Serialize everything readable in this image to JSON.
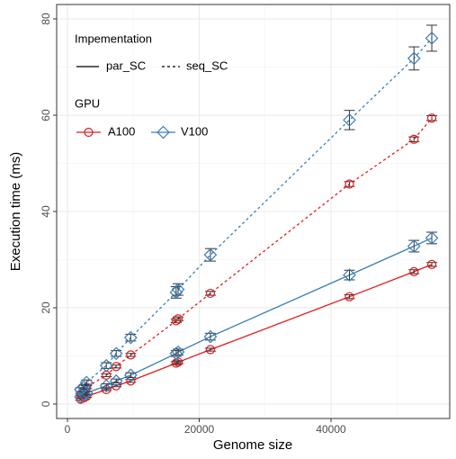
{
  "chart_data": {
    "type": "line",
    "x_label": "Genome size",
    "y_label": "Execution time (ms)",
    "x": [
      2000,
      2500,
      2900,
      5900,
      7400,
      9600,
      16500,
      16800,
      21700,
      42800,
      52600,
      55300
    ],
    "xlim": [
      -1640,
      58020
    ],
    "ylim": [
      -3,
      83
    ],
    "xticks": [
      0,
      20000,
      40000
    ],
    "yticks": [
      0,
      20,
      40,
      60,
      80
    ],
    "x_minor_ticks": [
      10000,
      30000,
      50000
    ],
    "y_minor_ticks": [
      10,
      30,
      50,
      70
    ],
    "grid": true,
    "series": [
      {
        "color": "#e41a1c",
        "marker": "circle",
        "dashed": false,
        "values": [
          1,
          1.3,
          1.6,
          3,
          3.8,
          4.8,
          8.5,
          8.7,
          11.3,
          22.3,
          27.5,
          29
        ],
        "errors": [
          0.2,
          0.2,
          0.2,
          0.2,
          0.2,
          0.3,
          0.3,
          0.3,
          0.3,
          0.4,
          0.4,
          0.4
        ]
      },
      {
        "color": "#e41a1c",
        "marker": "circle",
        "dashed": true,
        "values": [
          2,
          2.5,
          3.5,
          6,
          7.8,
          10.2,
          17.3,
          17.7,
          23,
          45.7,
          55,
          59.4
        ],
        "errors": [
          0.2,
          0.2,
          0.3,
          0.3,
          0.3,
          0.3,
          0.4,
          0.4,
          0.4,
          0.5,
          0.5,
          0.5
        ]
      },
      {
        "color": "#377eb8",
        "marker": "diamond",
        "dashed": false,
        "values": [
          1.5,
          2,
          2.3,
          3.8,
          4.8,
          6,
          10.5,
          10.8,
          14,
          26.8,
          32.8,
          34.5
        ],
        "errors": [
          0.3,
          0.3,
          0.3,
          0.4,
          0.4,
          0.5,
          0.6,
          0.6,
          0.7,
          1,
          1.2,
          1.2
        ]
      },
      {
        "color": "#377eb8",
        "marker": "diamond",
        "dashed": true,
        "values": [
          3,
          3.5,
          4.5,
          8,
          10.5,
          13.8,
          23.2,
          23.8,
          31,
          59,
          71.8,
          76
        ],
        "errors": [
          0.4,
          0.4,
          0.5,
          0.6,
          0.6,
          0.7,
          1.2,
          1.2,
          1.3,
          2,
          2.4,
          2.7
        ]
      }
    ],
    "legend": {
      "implementation": {
        "title": "Impementation",
        "items": [
          {
            "label": "par_SC",
            "dashed": false
          },
          {
            "label": "seq_SC",
            "dashed": true
          }
        ]
      },
      "gpu": {
        "title": "GPU",
        "items": [
          {
            "label": "A100",
            "color": "#e41a1c",
            "marker": "circle"
          },
          {
            "label": "V100",
            "color": "#377eb8",
            "marker": "diamond"
          }
        ]
      }
    }
  }
}
